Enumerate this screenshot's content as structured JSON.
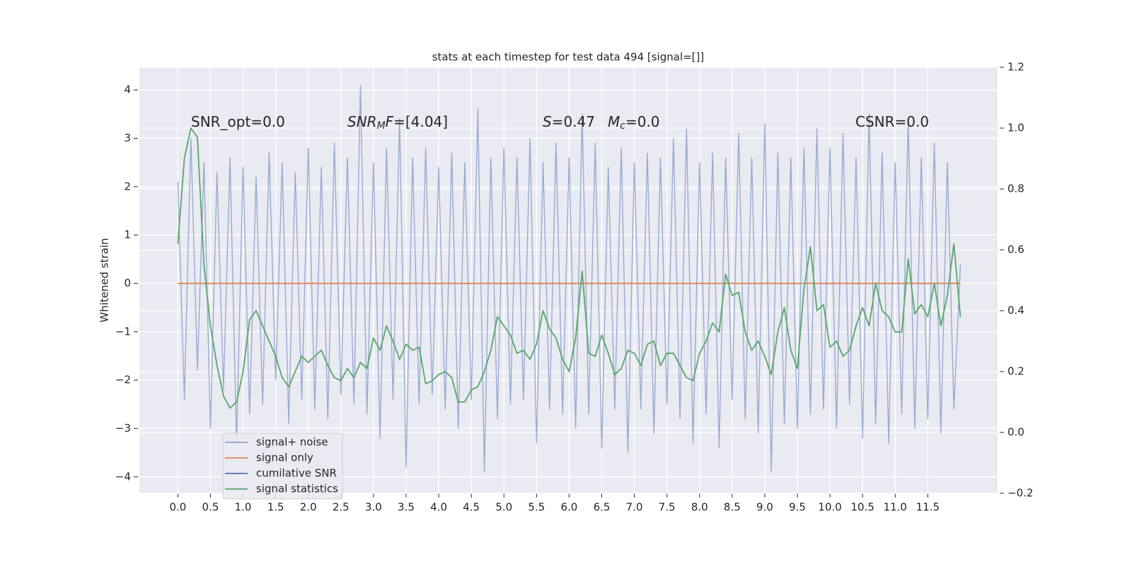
{
  "chart_data": {
    "type": "line",
    "title": "stats at each timestep for test data 494 [signal=[]]",
    "y_label": "Whitened strain",
    "grid": true,
    "legend_position": "lower left",
    "background": "#eaeaf2",
    "xlim": [
      -0.59,
      12.57
    ],
    "ylim": [
      -4.34,
      4.47
    ],
    "y2lim": [
      -0.2,
      1.2
    ],
    "xticks": [
      {
        "value": 0,
        "label": "0.0"
      },
      0.5,
      {
        "value": 1,
        "label": "1.0"
      },
      1.5,
      {
        "value": 2,
        "label": "2.0"
      },
      2.5,
      {
        "value": 3,
        "label": "3.0"
      },
      3.5,
      {
        "value": 4,
        "label": "4.0"
      },
      4.5,
      {
        "value": 5,
        "label": "5.0"
      },
      5.5,
      {
        "value": 6,
        "label": "6.0"
      },
      6.5,
      {
        "value": 7,
        "label": "7.0"
      },
      7.5,
      {
        "value": 8,
        "label": "8.0"
      },
      8.5,
      {
        "value": 9,
        "label": "9.0"
      },
      9.5,
      {
        "value": 10,
        "label": "10.0"
      },
      10.5,
      {
        "value": 11,
        "label": "11.0"
      },
      11.5
    ],
    "yticks": [
      {
        "value": -4,
        "label": "−4"
      },
      {
        "value": -3,
        "label": "−3"
      },
      {
        "value": -2,
        "label": "−2"
      },
      {
        "value": -1,
        "label": "−1"
      },
      0,
      1,
      2,
      3,
      4
    ],
    "y2ticks": [
      {
        "value": -0.2,
        "label": "−0.2"
      },
      {
        "value": 0,
        "label": "0.0"
      },
      0.2,
      0.4,
      0.6,
      0.8,
      {
        "value": 1,
        "label": "1.0"
      },
      1.2
    ],
    "annotations": [
      [
        {
          "text": "SNR_opt=0.0"
        }
      ],
      [
        {
          "text": "SNR",
          "italic": true
        },
        {
          "text": "M",
          "italic": true,
          "sub": true
        },
        {
          "text": "F",
          "italic": true
        },
        {
          "text": "=[4.04]"
        }
      ],
      [
        {
          "text": "S",
          "italic": true
        },
        {
          "text": "=0.47"
        }
      ],
      [
        {
          "text": "M",
          "italic": true
        },
        {
          "text": "c",
          "italic": true,
          "sub": true
        },
        {
          "text": "=0.0"
        }
      ],
      [
        {
          "text": "CSNR=0.0"
        }
      ]
    ],
    "x": [
      0,
      0.1,
      0.2,
      0.3,
      0.4,
      0.5,
      0.6,
      0.7,
      0.8,
      0.9,
      1,
      1.1,
      1.2,
      1.3,
      1.4,
      1.5,
      1.6,
      1.7,
      1.8,
      1.9,
      2,
      2.1,
      2.2,
      2.3,
      2.4,
      2.5,
      2.6,
      2.7,
      2.8,
      2.9,
      3,
      3.1,
      3.2,
      3.3,
      3.4,
      3.5,
      3.6,
      3.7,
      3.8,
      3.9,
      4,
      4.1,
      4.2,
      4.3,
      4.4,
      4.5,
      4.6,
      4.7,
      4.8,
      4.9,
      5,
      5.1,
      5.2,
      5.3,
      5.4,
      5.5,
      5.6,
      5.7,
      5.8,
      5.9,
      6,
      6.1,
      6.2,
      6.3,
      6.4,
      6.5,
      6.6,
      6.7,
      6.8,
      6.9,
      7,
      7.1,
      7.2,
      7.3,
      7.4,
      7.5,
      7.6,
      7.7,
      7.8,
      7.9,
      8,
      8.1,
      8.2,
      8.3,
      8.4,
      8.5,
      8.6,
      8.7,
      8.8,
      8.9,
      9,
      9.1,
      9.2,
      9.3,
      9.4,
      9.5,
      9.6,
      9.7,
      9.8,
      9.9,
      10,
      10.1,
      10.2,
      10.3,
      10.4,
      10.5,
      10.6,
      10.7,
      10.8,
      10.9,
      11,
      11.1,
      11.2,
      11.3,
      11.4,
      11.5,
      11.6,
      11.7,
      11.8,
      11.9,
      12
    ],
    "series": [
      {
        "name": "signal+ noise",
        "color": "#8fa3cf",
        "values": [
          2.1,
          -2.4,
          3.0,
          -1.8,
          2.5,
          -3.0,
          2.3,
          -2.2,
          2.6,
          -3.3,
          2.4,
          -2.7,
          2.2,
          -2.5,
          2.7,
          -2.0,
          2.5,
          -2.9,
          2.3,
          -2.4,
          2.8,
          -2.6,
          2.4,
          -2.8,
          2.9,
          -2.3,
          2.6,
          -2.5,
          4.1,
          -2.7,
          2.5,
          -3.2,
          2.8,
          -2.4,
          3.4,
          -3.8,
          2.6,
          -2.5,
          2.8,
          -2.3,
          2.4,
          -2.6,
          2.7,
          -3.0,
          2.5,
          -2.4,
          3.6,
          -3.9,
          2.6,
          -2.8,
          2.8,
          -2.5,
          2.6,
          -2.4,
          3.0,
          -3.3,
          2.5,
          -2.6,
          2.9,
          -2.7,
          2.6,
          -3.0,
          3.5,
          -2.7,
          2.9,
          -3.4,
          2.4,
          -2.6,
          2.8,
          -3.5,
          2.5,
          -2.6,
          2.7,
          -3.1,
          2.6,
          -2.5,
          3.0,
          -2.8,
          3.2,
          -3.3,
          2.5,
          -2.7,
          2.7,
          -3.4,
          2.6,
          -2.4,
          3.1,
          -2.8,
          2.6,
          -3.1,
          3.3,
          -3.9,
          2.7,
          -2.9,
          2.6,
          -3.0,
          2.8,
          -2.7,
          3.2,
          -2.6,
          2.8,
          -3.0,
          3.1,
          -2.5,
          2.6,
          -3.2,
          3.5,
          -2.9,
          2.7,
          -3.3,
          2.5,
          -2.7,
          3.4,
          -3.0,
          2.6,
          -2.8,
          2.9,
          -3.1,
          2.5,
          -2.6,
          0.4
        ]
      },
      {
        "name": "signal only",
        "color": "#dd8452",
        "values": [
          0,
          0,
          0,
          0,
          0,
          0,
          0,
          0,
          0,
          0,
          0,
          0,
          0,
          0,
          0,
          0,
          0,
          0,
          0,
          0,
          0,
          0,
          0,
          0,
          0,
          0,
          0,
          0,
          0,
          0,
          0,
          0,
          0,
          0,
          0,
          0,
          0,
          0,
          0,
          0,
          0,
          0,
          0,
          0,
          0,
          0,
          0,
          0,
          0,
          0,
          0,
          0,
          0,
          0,
          0,
          0,
          0,
          0,
          0,
          0,
          0,
          0,
          0,
          0,
          0,
          0,
          0,
          0,
          0,
          0,
          0,
          0,
          0,
          0,
          0,
          0,
          0,
          0,
          0,
          0,
          0,
          0,
          0,
          0,
          0,
          0,
          0,
          0,
          0,
          0,
          0,
          0,
          0,
          0,
          0,
          0,
          0,
          0,
          0,
          0,
          0,
          0,
          0,
          0,
          0,
          0,
          0,
          0,
          0,
          0,
          0,
          0,
          0,
          0,
          0,
          0,
          0,
          0,
          0,
          0,
          0
        ]
      },
      {
        "name": "cumilative SNR",
        "color": "#4c72b0",
        "values": [
          null,
          null,
          null,
          null,
          null,
          null,
          null,
          null,
          null,
          null,
          null,
          null,
          null,
          null,
          null,
          null,
          null,
          null,
          null,
          null,
          null,
          null,
          null,
          null,
          null,
          null,
          null,
          null,
          null,
          null,
          null,
          null,
          null,
          null,
          null,
          null,
          null,
          null,
          null,
          null,
          null,
          null,
          null,
          null,
          null,
          null,
          null,
          null,
          null,
          null,
          null,
          null,
          null,
          null,
          null,
          null,
          null,
          null,
          null,
          null,
          null,
          null,
          null,
          null,
          null,
          null,
          null,
          null,
          null,
          null,
          null,
          null,
          null,
          null,
          null,
          null,
          null,
          null,
          null,
          null,
          null,
          null,
          null,
          null,
          null,
          null,
          null,
          null,
          null,
          null,
          null,
          null,
          null,
          null,
          null,
          null,
          null,
          null,
          null,
          null,
          null,
          null,
          null,
          null,
          null,
          null,
          null,
          null,
          null,
          null,
          null,
          null,
          null,
          null,
          null,
          null,
          null,
          null,
          null,
          null,
          null
        ]
      },
      {
        "name": "signal statistics",
        "color": "#55a868",
        "axis": "y2",
        "values": [
          0.62,
          0.9,
          1.0,
          0.97,
          0.55,
          0.35,
          0.22,
          0.12,
          0.08,
          0.1,
          0.2,
          0.37,
          0.4,
          0.35,
          0.3,
          0.25,
          0.18,
          0.15,
          0.2,
          0.25,
          0.23,
          0.25,
          0.27,
          0.22,
          0.18,
          0.17,
          0.21,
          0.18,
          0.23,
          0.21,
          0.31,
          0.27,
          0.35,
          0.3,
          0.24,
          0.29,
          0.27,
          0.28,
          0.16,
          0.17,
          0.19,
          0.2,
          0.18,
          0.1,
          0.1,
          0.14,
          0.15,
          0.2,
          0.27,
          0.38,
          0.35,
          0.32,
          0.26,
          0.27,
          0.24,
          0.29,
          0.4,
          0.34,
          0.31,
          0.24,
          0.2,
          0.31,
          0.53,
          0.26,
          0.25,
          0.32,
          0.26,
          0.19,
          0.21,
          0.27,
          0.26,
          0.22,
          0.29,
          0.3,
          0.22,
          0.26,
          0.26,
          0.22,
          0.18,
          0.17,
          0.26,
          0.3,
          0.36,
          0.33,
          0.52,
          0.45,
          0.46,
          0.33,
          0.27,
          0.3,
          0.25,
          0.19,
          0.33,
          0.41,
          0.27,
          0.21,
          0.47,
          0.61,
          0.4,
          0.42,
          0.28,
          0.3,
          0.25,
          0.27,
          0.35,
          0.41,
          0.35,
          0.49,
          0.4,
          0.38,
          0.33,
          0.33,
          0.57,
          0.39,
          0.42,
          0.38,
          0.49,
          0.35,
          0.45,
          0.62,
          0.38
        ]
      }
    ]
  }
}
